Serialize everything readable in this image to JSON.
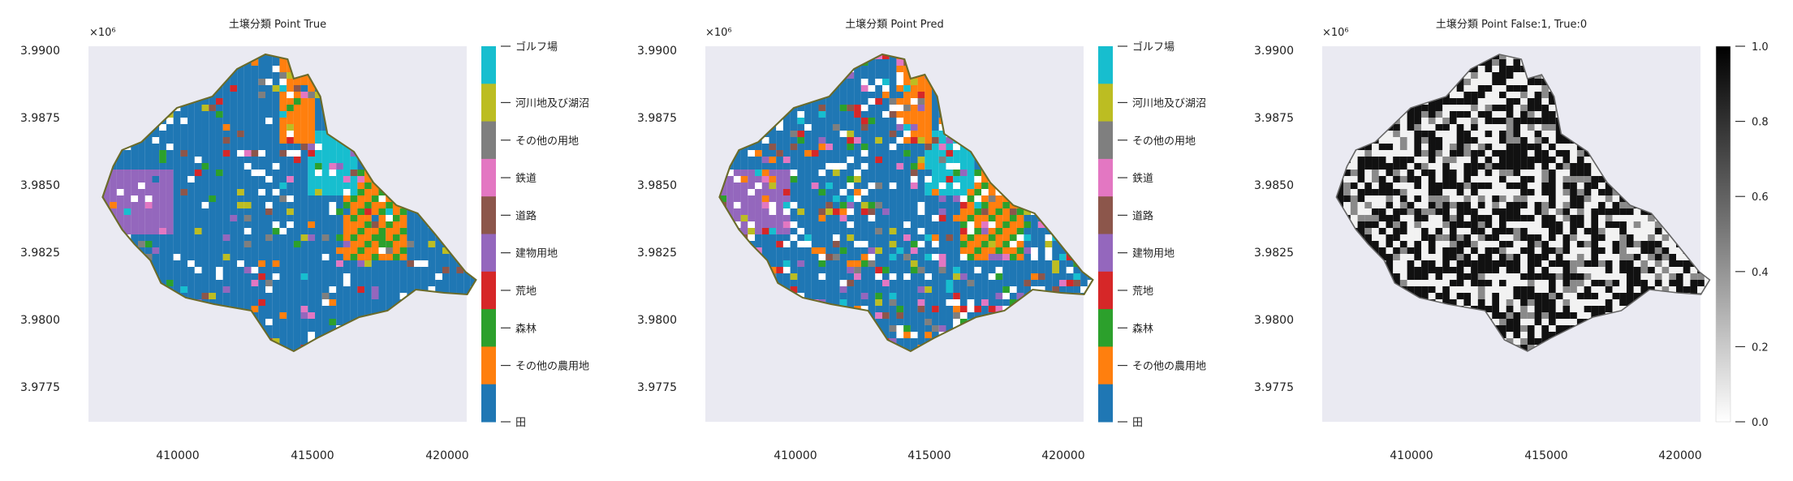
{
  "panels": [
    {
      "title": "土壌分類 Point True",
      "x_ticks": [
        "410000",
        "415000",
        "420000"
      ],
      "y_ticks": [
        "3.9900",
        "3.9875",
        "3.9850",
        "3.9825",
        "3.9800",
        "3.9775"
      ],
      "y_offset_label": "×10⁶",
      "colorbar": {
        "type": "categorical",
        "labels": [
          "ゴルフ場",
          "河川地及び湖沼",
          "その他の用地",
          "鉄道",
          "道路",
          "建物用地",
          "荒地",
          "森林",
          "その他の農用地",
          "田"
        ],
        "colors": [
          "#17becf",
          "#bcbd22",
          "#7f7f7f",
          "#e377c2",
          "#8c564b",
          "#9467bd",
          "#d62728",
          "#2ca02c",
          "#ff7f0e",
          "#1f77b4"
        ]
      }
    },
    {
      "title": "土壌分類 Point Pred",
      "x_ticks": [
        "410000",
        "415000",
        "420000"
      ],
      "y_ticks": [
        "3.9900",
        "3.9875",
        "3.9850",
        "3.9825",
        "3.9800",
        "3.9775"
      ],
      "y_offset_label": "×10⁶",
      "colorbar": {
        "type": "categorical",
        "labels": [
          "ゴルフ場",
          "河川地及び湖沼",
          "その他の用地",
          "鉄道",
          "道路",
          "建物用地",
          "荒地",
          "森林",
          "その他の農用地",
          "田"
        ],
        "colors": [
          "#17becf",
          "#bcbd22",
          "#7f7f7f",
          "#e377c2",
          "#8c564b",
          "#9467bd",
          "#d62728",
          "#2ca02c",
          "#ff7f0e",
          "#1f77b4"
        ]
      }
    },
    {
      "title": "土壌分類 Point False:1, True:0",
      "x_ticks": [
        "410000",
        "415000",
        "420000"
      ],
      "y_ticks": [
        "3.9900",
        "3.9875",
        "3.9850",
        "3.9825",
        "3.9800",
        "3.9775"
      ],
      "y_offset_label": "×10⁶",
      "colorbar": {
        "type": "continuous",
        "ticks": [
          "1.0",
          "0.8",
          "0.6",
          "0.4",
          "0.2",
          "0.0"
        ],
        "colormap": "greys"
      }
    }
  ],
  "chart_data": [
    {
      "type": "scatter",
      "title": "土壌分類 Point True",
      "xlim": [
        406500,
        420500
      ],
      "ylim": [
        3976200,
        3990100
      ],
      "legend": "colorbar-right"
    },
    {
      "type": "scatter",
      "title": "土壌分類 Point Pred",
      "xlim": [
        406500,
        420500
      ],
      "ylim": [
        3976200,
        3990100
      ],
      "legend": "colorbar-right"
    },
    {
      "type": "scatter",
      "title": "土壌分類 Point False:1, True:0",
      "xlim": [
        406500,
        420500
      ],
      "ylim": [
        3976200,
        3990100
      ],
      "colorbar_range": [
        0.0,
        1.0
      ],
      "legend": "colorbar-right"
    }
  ]
}
